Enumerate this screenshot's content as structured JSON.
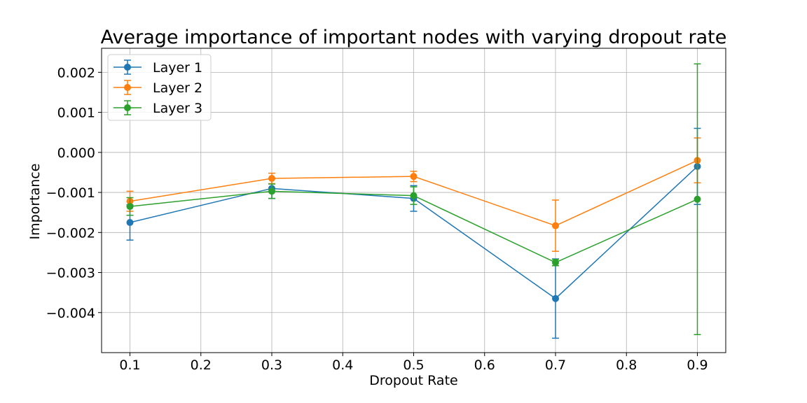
{
  "chart_data": {
    "type": "line",
    "title": "Average importance of important nodes with varying dropout rate",
    "xlabel": "Dropout Rate",
    "ylabel": "Importance",
    "xlim": [
      0.06,
      0.94
    ],
    "ylim": [
      -0.005,
      0.0026
    ],
    "xticks": [
      0.1,
      0.2,
      0.3,
      0.4,
      0.5,
      0.6,
      0.7,
      0.8,
      0.9
    ],
    "xtick_labels": [
      "0.1",
      "0.2",
      "0.3",
      "0.4",
      "0.5",
      "0.6",
      "0.7",
      "0.8",
      "0.9"
    ],
    "yticks": [
      -0.004,
      -0.003,
      -0.002,
      -0.001,
      0.0,
      0.001,
      0.002
    ],
    "ytick_labels": [
      "−0.004",
      "−0.003",
      "−0.002",
      "−0.001",
      "0.000",
      "0.001",
      "0.002"
    ],
    "grid": true,
    "legend_position": "top-left",
    "x": [
      0.1,
      0.3,
      0.5,
      0.7,
      0.9
    ],
    "series": [
      {
        "name": "Layer 1",
        "color": "#1f77b4",
        "values": [
          -0.00175,
          -0.0009,
          -0.00115,
          -0.00365,
          -0.00035
        ],
        "errors": [
          0.00044,
          0.00025,
          0.00032,
          0.00099,
          0.00095
        ]
      },
      {
        "name": "Layer 2",
        "color": "#ff7f0e",
        "values": [
          -0.00122,
          -0.00065,
          -0.0006,
          -0.00183,
          -0.0002
        ],
        "errors": [
          0.00025,
          0.00013,
          0.00013,
          0.00064,
          0.00056
        ]
      },
      {
        "name": "Layer 3",
        "color": "#2ca02c",
        "values": [
          -0.00135,
          -0.00097,
          -0.00108,
          -0.00275,
          -0.00117
        ],
        "errors": [
          0.00022,
          0.00018,
          0.00022,
          8e-05,
          0.00338
        ]
      }
    ]
  }
}
